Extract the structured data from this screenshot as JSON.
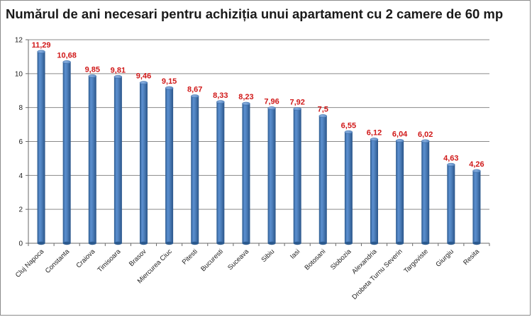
{
  "chart_data": {
    "type": "bar",
    "title": "Numărul de ani necesari pentru achiziția unui apartament cu 2 camere de 60 mp",
    "xlabel": "",
    "ylabel": "",
    "ylim": [
      0,
      12
    ],
    "yticks": [
      0,
      2,
      4,
      6,
      8,
      10,
      12
    ],
    "grid": true,
    "legend": "none",
    "categories": [
      "Cluj Napoca",
      "Constanta",
      "Craiova",
      "Timisoara",
      "Brasov",
      "Miercurea Ciuc",
      "Pitesti",
      "Bucuresti",
      "Suceava",
      "Sibiu",
      "Iasi",
      "Botosani",
      "Slobozia",
      "Alexandria",
      "Drobeta Turnu Severin",
      "Targoviste",
      "Giurgiu",
      "Resita"
    ],
    "values": [
      11.29,
      10.68,
      9.85,
      9.81,
      9.46,
      9.15,
      8.67,
      8.33,
      8.23,
      7.96,
      7.92,
      7.5,
      6.55,
      6.12,
      6.04,
      6.02,
      4.63,
      4.26
    ],
    "value_labels": [
      "11,29",
      "10,68",
      "9,85",
      "9,81",
      "9,46",
      "9,15",
      "8,67",
      "8,33",
      "8,23",
      "7,96",
      "7,92",
      "7,5",
      "6,55",
      "6,12",
      "6,04",
      "6,02",
      "4,63",
      "4,26"
    ],
    "colors": {
      "bar": "#4f81bd",
      "bar_dark": "#2c5a8e",
      "label": "#d01818",
      "grid": "#8a8a8a"
    }
  }
}
